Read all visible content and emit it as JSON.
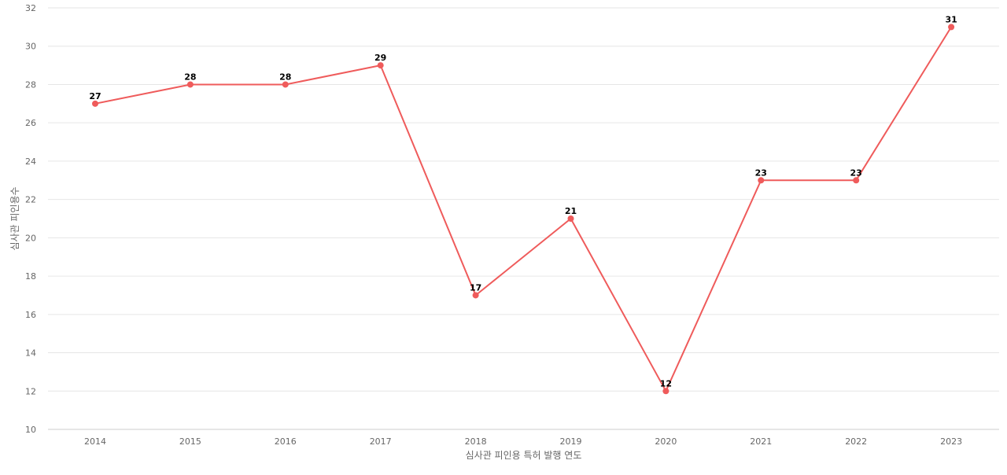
{
  "chart_data": {
    "type": "line",
    "title": "",
    "xlabel": "심사관 피인용 특허 발행 연도",
    "ylabel": "심사관 피인용수",
    "categories": [
      "2014",
      "2015",
      "2016",
      "2017",
      "2018",
      "2019",
      "2020",
      "2021",
      "2022",
      "2023"
    ],
    "series": [
      {
        "values": [
          27,
          28,
          28,
          29,
          17,
          21,
          12,
          23,
          23,
          31
        ],
        "color": "#ef5b5b"
      }
    ],
    "ylim": [
      10,
      32
    ],
    "yticks": [
      10,
      12,
      14,
      16,
      18,
      20,
      22,
      24,
      26,
      28,
      30,
      32
    ],
    "grid": true,
    "data_labels": true,
    "legend": "none"
  }
}
